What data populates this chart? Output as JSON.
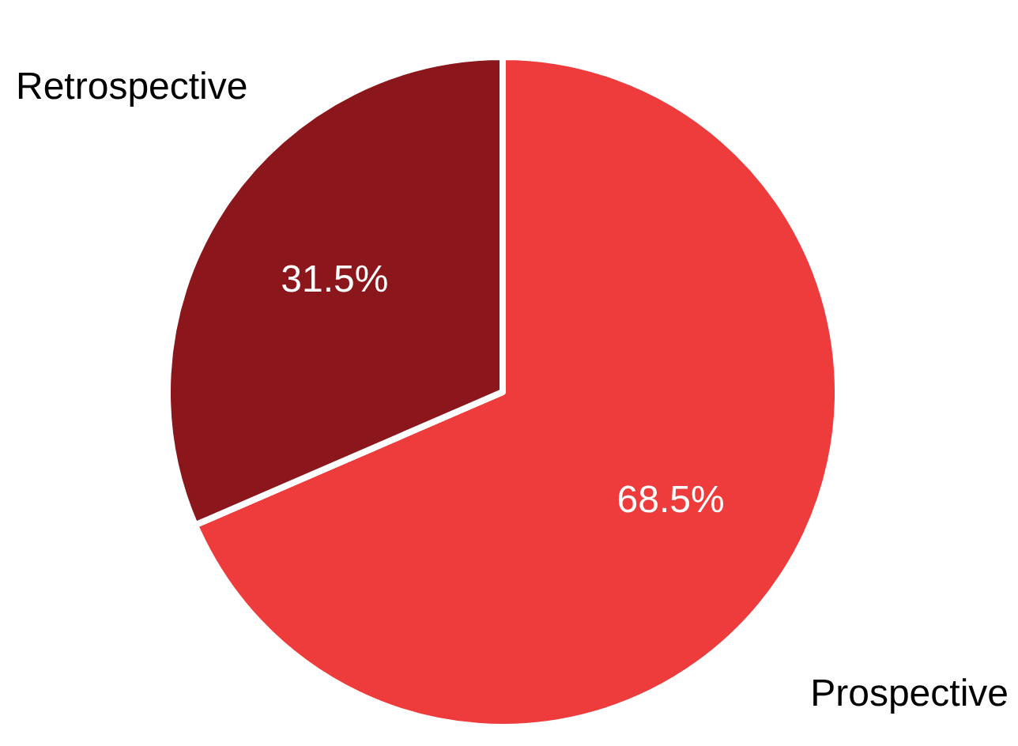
{
  "chart_data": {
    "type": "pie",
    "categories": [
      "Prospective",
      "Retrospective"
    ],
    "values": [
      68.5,
      31.5
    ],
    "colors": [
      "#ee3b3b",
      "#8b171d"
    ],
    "value_labels": [
      "68.5%",
      "31.5%"
    ]
  }
}
